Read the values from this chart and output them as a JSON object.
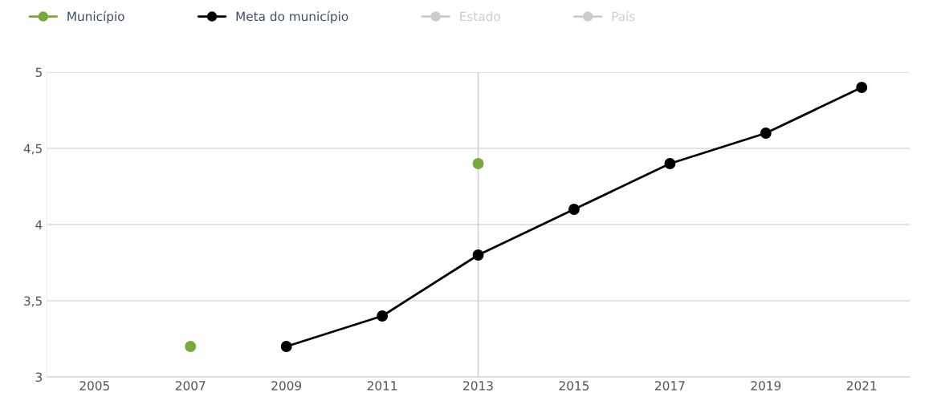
{
  "chart_data": {
    "type": "line",
    "categories": [
      "2005",
      "2007",
      "2009",
      "2011",
      "2013",
      "2015",
      "2017",
      "2019",
      "2021"
    ],
    "series": [
      {
        "name": "Município",
        "color": "#77a83a",
        "values": [
          null,
          3.2,
          null,
          null,
          4.4,
          null,
          null,
          null,
          null
        ],
        "type": "scatter"
      },
      {
        "name": "Meta do município",
        "color": "#000000",
        "values": [
          null,
          null,
          3.2,
          3.4,
          3.8,
          4.1,
          4.4,
          4.6,
          4.9
        ]
      },
      {
        "name": "Estado",
        "color": "#cccccc",
        "values": [
          null,
          null,
          null,
          null,
          null,
          null,
          null,
          null,
          null
        ]
      },
      {
        "name": "País",
        "color": "#cccccc",
        "values": [
          null,
          null,
          null,
          null,
          null,
          null,
          null,
          null,
          null
        ]
      }
    ],
    "ylim": [
      3,
      5
    ],
    "yticks": [
      3,
      {
        "value": 3.5,
        "label": "3,5"
      },
      4,
      {
        "value": 4.5,
        "label": "4,5"
      },
      5
    ],
    "grid": "y",
    "legend": "top left",
    "marker": "circle",
    "line_style": "solid",
    "ref_lines": [
      {
        "axis": "x",
        "value": "2013",
        "color": "#cccccc"
      }
    ]
  }
}
